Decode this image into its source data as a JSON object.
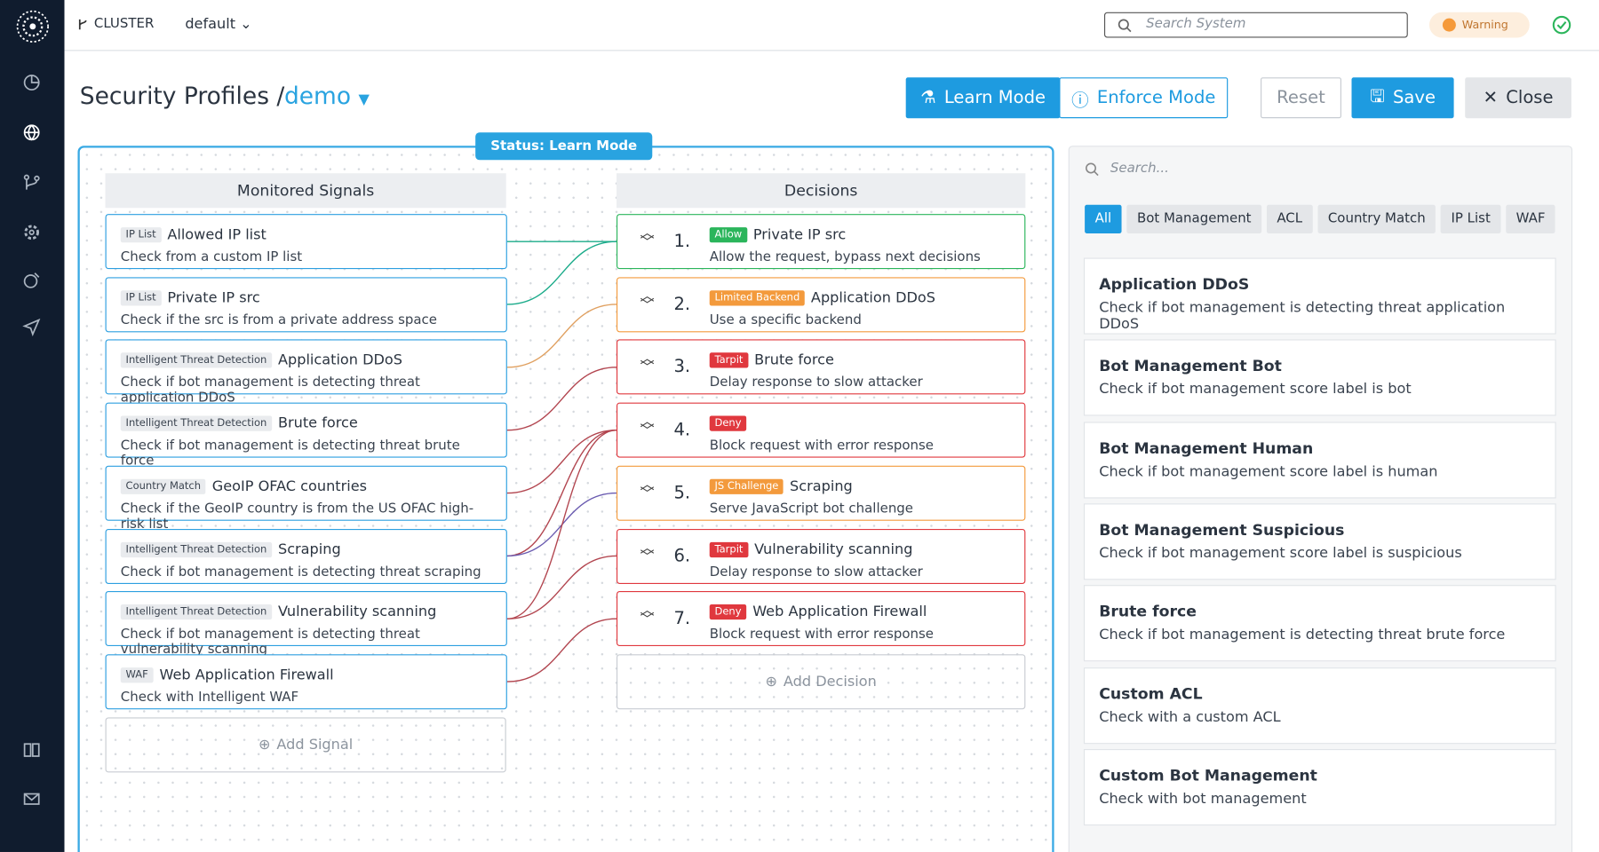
{
  "header": {
    "cluster": "CLUSTER",
    "environment": "default",
    "search_placeholder": "Search System",
    "status": "Warning"
  },
  "page": {
    "title": "Security Profiles /",
    "profile": "demo",
    "buttons": {
      "learn": "Learn Mode",
      "enforce": "Enforce Mode",
      "reset": "Reset",
      "save": "Save",
      "close": "Close"
    },
    "status": "Status: Learn Mode"
  },
  "signals": {
    "title": "Monitored Signals",
    "add": "Add Signal",
    "items": [
      {
        "tag": "IP List",
        "title": "Allowed IP list",
        "description": "Check from a custom IP list"
      },
      {
        "tag": "IP List",
        "title": "Private IP src",
        "description": "Check if the src is from a private address space"
      },
      {
        "tag": "Intelligent Threat Detection",
        "title": "Application DDoS",
        "description": "Check if bot management is detecting threat application DDoS"
      },
      {
        "tag": "Intelligent Threat Detection",
        "title": "Brute force",
        "description": "Check if bot management is detecting threat brute force"
      },
      {
        "tag": "Country Match",
        "title": "GeoIP OFAC countries",
        "description": "Check if the GeoIP country is from the US OFAC high-risk list"
      },
      {
        "tag": "Intelligent Threat Detection",
        "title": "Scraping",
        "description": "Check if bot management is detecting threat scraping"
      },
      {
        "tag": "Intelligent Threat Detection",
        "title": "Vulnerability scanning",
        "description": "Check if bot management is detecting threat vulnerability scanning"
      },
      {
        "tag": "WAF",
        "title": "Web Application Firewall",
        "description": "Check with Intelligent WAF"
      }
    ]
  },
  "decisions": {
    "title": "Decisions",
    "add": "Add Decision",
    "items": [
      {
        "number": "1.",
        "tag": "Allow",
        "title": "Private IP src",
        "description": "Allow the request, bypass next decisions"
      },
      {
        "number": "2.",
        "tag": "Limited Backend",
        "title": "Application DDoS",
        "description": "Use a specific backend"
      },
      {
        "number": "3.",
        "tag": "Tarpit",
        "title": "Brute force",
        "description": "Delay response to slow attacker"
      },
      {
        "number": "4.",
        "tag": "Deny",
        "description": "Block request with error response"
      },
      {
        "number": "5.",
        "tag": "JS Challenge",
        "title": "Scraping",
        "description": "Serve JavaScript bot challenge"
      },
      {
        "number": "6.",
        "tag": "Tarpit",
        "title": "Vulnerability scanning",
        "description": "Delay response to slow attacker"
      },
      {
        "number": "7.",
        "tag": "Deny",
        "title": "Web Application Firewall",
        "description": "Block request with error response"
      }
    ]
  },
  "library": {
    "search_placeholder": "Search...",
    "filters": [
      "All",
      "Bot Management",
      "ACL",
      "Country Match",
      "IP List",
      "WAF"
    ],
    "items": [
      {
        "title": "Application DDoS",
        "description": "Check if bot management is detecting threat application DDoS"
      },
      {
        "title": "Bot Management Bot",
        "description": "Check if bot management score label is bot"
      },
      {
        "title": "Bot Management Human",
        "description": "Check if bot management score label is human"
      },
      {
        "title": "Bot Management Suspicious",
        "description": "Check if bot management score label is suspicious"
      },
      {
        "title": "Brute force",
        "description": "Check if bot management is detecting threat brute force"
      },
      {
        "title": "Custom ACL",
        "description": "Check with a custom ACL"
      },
      {
        "title": "Custom Bot Management",
        "description": "Check with bot management"
      }
    ]
  }
}
